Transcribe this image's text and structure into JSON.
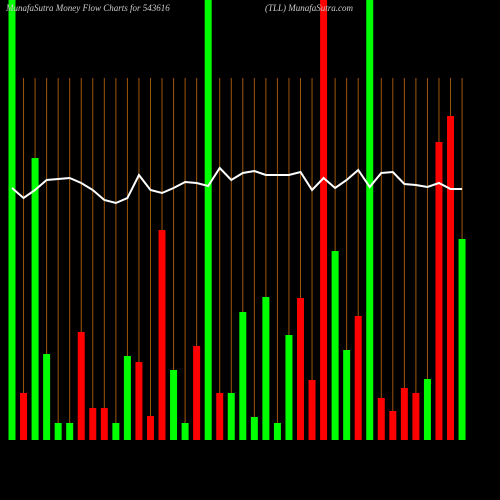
{
  "chart_data": {
    "type": "bar",
    "title": "MunafaSutra  Money Flow  Charts for 543616",
    "subtitle": "(TLL) MunafaSutra.com",
    "ylim": [
      0,
      440
    ],
    "grid_color": "#a0560a",
    "bars": {
      "values": [
        440,
        47,
        282,
        86,
        17,
        17,
        108,
        32,
        32,
        17,
        84,
        78,
        24,
        210,
        70,
        17,
        94,
        440,
        47,
        47,
        128,
        23,
        143,
        17,
        105,
        142,
        60,
        440,
        189,
        90,
        124,
        440,
        42,
        29,
        52,
        47,
        61,
        298,
        324,
        201
      ],
      "colors": [
        "#00ff00",
        "#ff0000",
        "#00ff00",
        "#00ff00",
        "#00ff00",
        "#00ff00",
        "#ff0000",
        "#ff0000",
        "#ff0000",
        "#00ff00",
        "#00ff00",
        "#ff0000",
        "#ff0000",
        "#ff0000",
        "#00ff00",
        "#00ff00",
        "#ff0000",
        "#00ff00",
        "#ff0000",
        "#00ff00",
        "#00ff00",
        "#00ff00",
        "#00ff00",
        "#00ff00",
        "#00ff00",
        "#ff0000",
        "#ff0000",
        "#ff0000",
        "#00ff00",
        "#00ff00",
        "#ff0000",
        "#00ff00",
        "#ff0000",
        "#ff0000",
        "#ff0000",
        "#ff0000",
        "#00ff00",
        "#ff0000",
        "#ff0000",
        "#00ff00"
      ]
    },
    "line": {
      "color": "#ffffff",
      "values": [
        252,
        242,
        250,
        260,
        261,
        262,
        257,
        250,
        240,
        237,
        242,
        265,
        250,
        247,
        252,
        258,
        257,
        254,
        272,
        260,
        267,
        269,
        265,
        265,
        265,
        268,
        250,
        262,
        252,
        260,
        270,
        253,
        267,
        268,
        256,
        255,
        253,
        257,
        251,
        251
      ]
    }
  }
}
